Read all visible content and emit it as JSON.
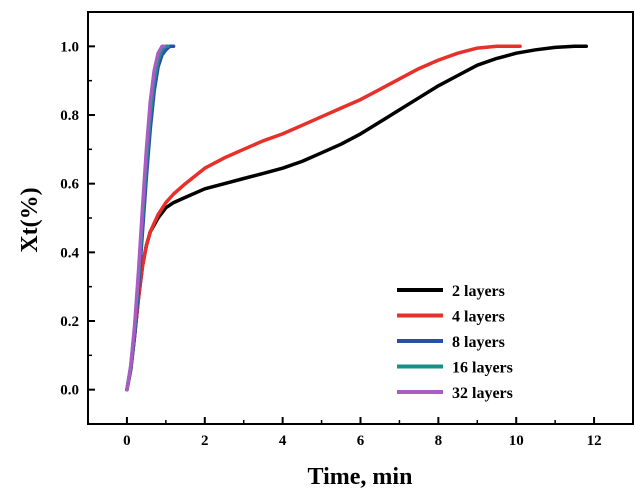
{
  "chart_data": {
    "type": "line",
    "title": "",
    "xlabel": "Time, min",
    "ylabel": "Xt(%)",
    "xlim": [
      -1,
      13
    ],
    "ylim": [
      -0.1,
      1.1
    ],
    "x_ticks": [
      0,
      2,
      4,
      6,
      8,
      10,
      12
    ],
    "y_ticks": [
      0.0,
      0.2,
      0.4,
      0.6,
      0.8,
      1.0
    ],
    "x_tick_labels": [
      "0",
      "2",
      "4",
      "6",
      "8",
      "10",
      "12"
    ],
    "y_tick_labels": [
      "0.0",
      "0.2",
      "0.4",
      "0.6",
      "0.8",
      "1.0"
    ],
    "grid": false,
    "legend_position": "bottom-right",
    "series": [
      {
        "name": "2 layers",
        "color": "#000000",
        "x": [
          0,
          0.1,
          0.2,
          0.3,
          0.4,
          0.5,
          0.6,
          0.8,
          1.0,
          1.2,
          1.5,
          2.0,
          2.5,
          3.0,
          3.5,
          4.0,
          4.5,
          5.0,
          5.5,
          6.0,
          6.5,
          7.0,
          7.5,
          8.0,
          8.5,
          9.0,
          9.5,
          10.0,
          10.5,
          11.0,
          11.5,
          11.8
        ],
        "y": [
          0.0,
          0.06,
          0.16,
          0.27,
          0.36,
          0.42,
          0.46,
          0.5,
          0.53,
          0.545,
          0.56,
          0.585,
          0.6,
          0.615,
          0.63,
          0.645,
          0.665,
          0.69,
          0.715,
          0.745,
          0.78,
          0.815,
          0.85,
          0.885,
          0.915,
          0.945,
          0.965,
          0.98,
          0.99,
          0.997,
          1.0,
          1.0
        ]
      },
      {
        "name": "4 layers",
        "color": "#e8302a",
        "x": [
          0,
          0.1,
          0.2,
          0.3,
          0.4,
          0.5,
          0.6,
          0.8,
          1.0,
          1.2,
          1.5,
          2.0,
          2.5,
          3.0,
          3.5,
          4.0,
          4.5,
          5.0,
          5.5,
          6.0,
          6.5,
          7.0,
          7.5,
          8.0,
          8.5,
          9.0,
          9.5,
          10.0,
          10.1
        ],
        "y": [
          0.0,
          0.06,
          0.16,
          0.27,
          0.36,
          0.42,
          0.46,
          0.51,
          0.545,
          0.57,
          0.6,
          0.645,
          0.675,
          0.7,
          0.725,
          0.745,
          0.77,
          0.795,
          0.82,
          0.845,
          0.875,
          0.905,
          0.935,
          0.96,
          0.98,
          0.995,
          1.0,
          1.0,
          1.0
        ]
      },
      {
        "name": "8 layers",
        "color": "#2b4ea8",
        "x": [
          0,
          0.1,
          0.2,
          0.3,
          0.4,
          0.5,
          0.6,
          0.7,
          0.8,
          0.9,
          1.0,
          1.1,
          1.2
        ],
        "y": [
          0.0,
          0.06,
          0.16,
          0.3,
          0.46,
          0.62,
          0.76,
          0.87,
          0.94,
          0.975,
          0.99,
          1.0,
          1.0
        ]
      },
      {
        "name": "16 layers",
        "color": "#1a8f8a",
        "x": [
          0,
          0.1,
          0.2,
          0.3,
          0.4,
          0.5,
          0.6,
          0.7,
          0.8,
          0.9,
          1.0,
          1.05
        ],
        "y": [
          0.0,
          0.07,
          0.18,
          0.33,
          0.5,
          0.66,
          0.8,
          0.9,
          0.96,
          0.99,
          1.0,
          1.0
        ]
      },
      {
        "name": "32 layers",
        "color": "#a85cc4",
        "x": [
          0,
          0.1,
          0.2,
          0.3,
          0.4,
          0.5,
          0.6,
          0.7,
          0.8,
          0.9,
          0.95
        ],
        "y": [
          0.0,
          0.07,
          0.19,
          0.35,
          0.53,
          0.7,
          0.84,
          0.93,
          0.98,
          1.0,
          1.0
        ]
      }
    ]
  }
}
